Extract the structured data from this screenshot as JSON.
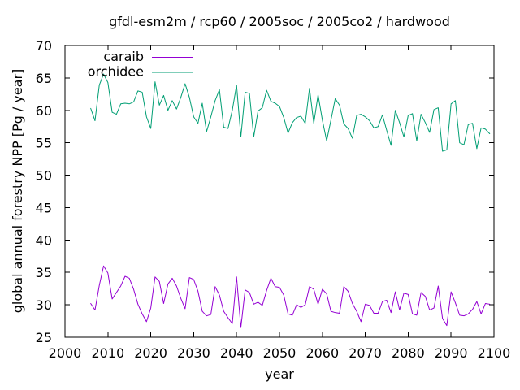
{
  "chart_data": {
    "type": "line",
    "title": "gfdl-esm2m / rcp60 / 2005soc / 2005co2 / hardwood",
    "xlabel": "year",
    "ylabel": "global annual forestry NPP [Pg / year]",
    "xlim": [
      2000,
      2100
    ],
    "ylim": [
      25,
      70
    ],
    "xticks": [
      2000,
      2010,
      2020,
      2030,
      2040,
      2050,
      2060,
      2070,
      2080,
      2090,
      2100
    ],
    "yticks": [
      25,
      30,
      35,
      40,
      45,
      50,
      55,
      60,
      65,
      70
    ],
    "grid": false,
    "background": "#ffffff",
    "axis_color": "#000000",
    "text_color": "#000000",
    "legend": {
      "position": "top-left-inside",
      "entries": [
        "caraib",
        "orchidee"
      ]
    },
    "x_start": 2006,
    "x_step": 1,
    "series": [
      {
        "name": "caraib",
        "color": "#9400d3",
        "values": [
          30.2,
          29.2,
          33.0,
          36.0,
          34.9,
          30.9,
          31.9,
          32.9,
          34.4,
          34.1,
          32.4,
          30.1,
          28.6,
          27.4,
          29.5,
          34.3,
          33.6,
          30.2,
          33.2,
          34.1,
          32.9,
          31.0,
          29.4,
          34.2,
          33.9,
          32.1,
          29.0,
          28.3,
          28.5,
          32.8,
          31.5,
          29.0,
          28.0,
          27.1,
          34.3,
          26.5,
          32.3,
          31.9,
          30.1,
          30.4,
          29.9,
          32.2,
          34.1,
          32.8,
          32.7,
          31.5,
          28.6,
          28.4,
          30.0,
          29.6,
          30.0,
          32.8,
          32.4,
          30.1,
          32.4,
          31.7,
          29.0,
          28.8,
          28.7,
          32.8,
          32.1,
          30.2,
          29.0,
          27.4,
          30.1,
          29.9,
          28.7,
          28.7,
          30.5,
          30.7,
          28.8,
          32.0,
          29.2,
          31.8,
          31.6,
          28.6,
          28.4,
          31.9,
          31.3,
          29.2,
          29.5,
          32.9,
          27.9,
          26.8,
          32.0,
          30.3,
          28.4,
          28.3,
          28.6,
          29.3,
          30.5,
          28.6,
          30.2,
          30.1
        ]
      },
      {
        "name": "orchidee",
        "color": "#009e73",
        "values": [
          60.3,
          58.4,
          63.9,
          65.6,
          64.3,
          59.7,
          59.4,
          61.0,
          61.1,
          61.0,
          61.3,
          63.0,
          62.8,
          59.0,
          57.2,
          64.4,
          60.8,
          62.3,
          60.0,
          61.5,
          60.2,
          62.0,
          64.1,
          62.0,
          59.0,
          58.0,
          61.1,
          56.7,
          59.0,
          61.5,
          63.2,
          57.4,
          57.2,
          60.0,
          63.9,
          55.9,
          62.8,
          62.6,
          55.9,
          59.9,
          60.4,
          63.1,
          61.4,
          61.1,
          60.6,
          58.9,
          56.5,
          58.1,
          58.9,
          59.1,
          58.0,
          63.4,
          58.0,
          62.4,
          58.5,
          55.3,
          58.5,
          61.8,
          60.8,
          57.9,
          57.2,
          55.7,
          59.2,
          59.4,
          59.0,
          58.4,
          57.3,
          57.5,
          59.3,
          56.9,
          54.6,
          60.0,
          58.1,
          55.9,
          59.2,
          59.5,
          55.3,
          59.4,
          58.1,
          56.6,
          60.1,
          60.4,
          53.7,
          53.9,
          61.0,
          61.5,
          55.0,
          54.7,
          57.8,
          58.0,
          54.1,
          57.3,
          57.1,
          56.4
        ]
      }
    ]
  }
}
